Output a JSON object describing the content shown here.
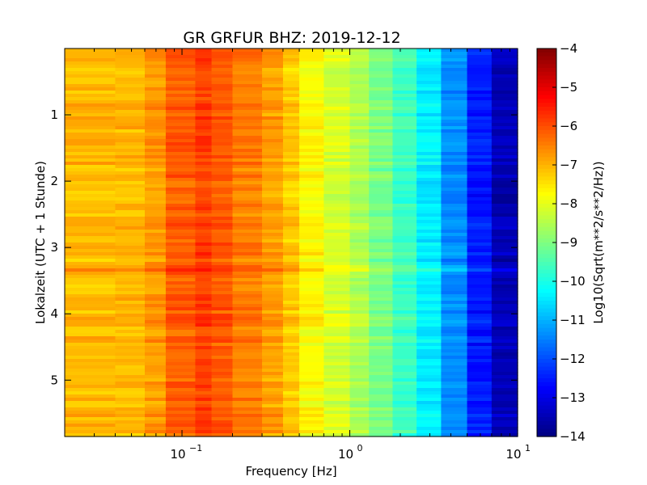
{
  "chart_data": {
    "type": "heatmap",
    "title": "GR GRFUR BHZ: 2019-12-12",
    "xlabel": "Frequency [Hz]",
    "ylabel": "Lokalzeit (UTC + 1 Stunde)",
    "xscale": "log",
    "xlim": [
      0.02,
      10
    ],
    "ylim": [
      5.85,
      0
    ],
    "x_ticks": [
      {
        "value": 0.1,
        "base": "10",
        "exp": "−1"
      },
      {
        "value": 1,
        "base": "10",
        "exp": "0"
      },
      {
        "value": 10,
        "base": "10",
        "exp": "1"
      }
    ],
    "y_ticks": [
      {
        "value": 1,
        "label": "1"
      },
      {
        "value": 2,
        "label": "2"
      },
      {
        "value": 3,
        "label": "3"
      },
      {
        "value": 4,
        "label": "4"
      },
      {
        "value": 5,
        "label": "5"
      }
    ],
    "colorbar": {
      "label": "Log10(Sqrt(m**2/s**2/Hz))",
      "colormap": "jet",
      "range": [
        -14,
        -4
      ],
      "ticks": [
        {
          "value": -4,
          "label": "−4"
        },
        {
          "value": -5,
          "label": "−5"
        },
        {
          "value": -6,
          "label": "−6"
        },
        {
          "value": -7,
          "label": "−7"
        },
        {
          "value": -8,
          "label": "−8"
        },
        {
          "value": -9,
          "label": "−9"
        },
        {
          "value": -10,
          "label": "−10"
        },
        {
          "value": -11,
          "label": "−11"
        },
        {
          "value": -12,
          "label": "−12"
        },
        {
          "value": -13,
          "label": "−13"
        },
        {
          "value": -14,
          "label": "−14"
        }
      ]
    },
    "frequency_bins_hz": [
      0.02,
      0.04,
      0.06,
      0.08,
      0.12,
      0.15,
      0.2,
      0.3,
      0.4,
      0.5,
      0.7,
      1.0,
      1.3,
      1.8,
      2.5,
      3.5,
      5.0,
      7.0,
      10
    ],
    "psd_profile": [
      -7.0,
      -7.1,
      -7.0,
      -6.5,
      -5.8,
      -5.9,
      -6.3,
      -6.6,
      -7.0,
      -7.4,
      -8.0,
      -8.3,
      -8.8,
      -9.3,
      -10.0,
      -10.8,
      -11.9,
      -13.1,
      -13.8
    ],
    "time_rows": 120,
    "event_hour": 3.3
  }
}
